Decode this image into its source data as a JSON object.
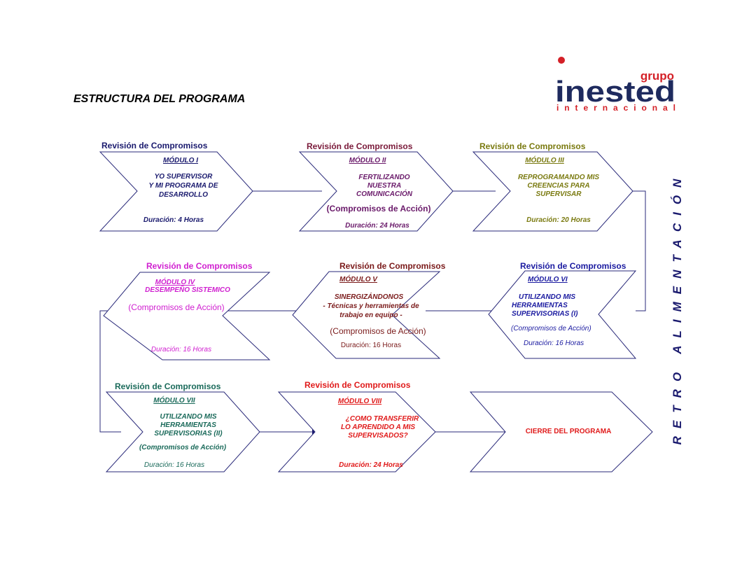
{
  "page": {
    "title": "ESTRUCTURA DEL PROGRAMA",
    "side_label": "RETRO ALIMENTACIÓN"
  },
  "logo": {
    "word_top": "grupo",
    "word_main": "inested",
    "word_bottom": "internacional",
    "colors": {
      "navy": "#1e2a5e",
      "red": "#d42027"
    }
  },
  "colors": {
    "outline": "#2a2a7a",
    "m1": "#1a1a6e",
    "m2": "#6a1a6a",
    "m3": "#7a7a10",
    "m4": "#d020d0",
    "m5": "#7a1a1a",
    "m6": "#1a1aa0",
    "m7": "#1a6a5a",
    "m8": "#e01a1a",
    "title": "#000000",
    "retro": "#1a1a6e"
  },
  "modules": {
    "m1": {
      "review": "Revisión de Compromisos",
      "module": "MÓDULO I",
      "lines": [
        "YO SUPERVISOR",
        "Y MI PROGRAMA DE",
        "DESARROLLO"
      ],
      "duration": "Duración: 4 Horas"
    },
    "m2": {
      "review": "Revisión de Compromisos",
      "module": "MÓDULO II",
      "lines": [
        "FERTILIZANDO",
        "NUESTRA",
        "COMUNICACIÓN"
      ],
      "commitments": "(Compromisos de Acción)",
      "duration": "Duración: 24 Horas"
    },
    "m3": {
      "review": "Revisión de Compromisos",
      "module": "MÓDULO III",
      "lines": [
        "REPROGRAMANDO MIS",
        "CREENCIAS PARA",
        "SUPERVISAR"
      ],
      "duration": "Duración: 20 Horas"
    },
    "m4": {
      "review": "Revisión de Compromisos",
      "module": "MÓDULO IV",
      "lines": [
        "DESEMPEÑO SISTEMICO"
      ],
      "commitments": "(Compromisos de Acción)",
      "duration": "Duración: 16 Horas"
    },
    "m5": {
      "review": "Revisión de Compromisos",
      "module": "MÓDULO V",
      "lines": [
        "SINERGIZÁNDONOS",
        "- Técnicas y herramientas de",
        "trabajo en equipo -"
      ],
      "commitments": "(Compromisos de Acción)",
      "duration": "Duración: 16  Horas"
    },
    "m6": {
      "review": "Revisión de Compromisos",
      "module": "MÓDULO VI",
      "lines": [
        "UTILIZANDO MIS",
        "HERRAMIENTAS",
        "SUPERVISORIAS (I)"
      ],
      "commitments": "(Compromisos de Acción)",
      "duration": "Duración: 16 Horas"
    },
    "m7": {
      "review": "Revisión de Compromisos",
      "module": "MÓDULO VII",
      "lines": [
        "UTILIZANDO MIS",
        "HERRAMIENTAS",
        "SUPERVISORIAS (II)"
      ],
      "commitments": "(Compromisos de Acción)",
      "duration": "Duración: 16 Horas"
    },
    "m8": {
      "review": "Revisión de Compromisos",
      "module": "MÓDULO VIII",
      "lines": [
        "¿COMO TRANSFERIR",
        "LO APRENDIDO A MIS",
        "SUPERVISADOS?"
      ],
      "duration": "Duración: 24 Horas"
    },
    "end": {
      "label": "CIERRE DEL PROGRAMA"
    }
  }
}
